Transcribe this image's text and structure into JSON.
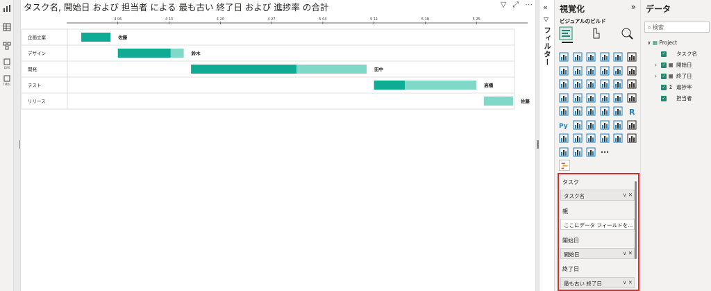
{
  "visual": {
    "title": "タスク名, 開始日 および 担当者 による 最も古い 終了日 および 進捗率 の合計",
    "icons": [
      "filter-icon",
      "focus-mode-icon",
      "more-options-icon"
    ]
  },
  "chart_data": {
    "type": "gantt",
    "x_ticks": [
      "4 06",
      "4 13",
      "4 20",
      "4 27",
      "5 04",
      "5 11",
      "5 18",
      "5 25"
    ],
    "x_range": [
      "2023-03-30",
      "2023-06-01"
    ],
    "rows": [
      {
        "task": "企画立案",
        "start": "2023-04-01",
        "end": "2023-04-05",
        "progress": 1.0,
        "owner": "佐藤"
      },
      {
        "task": "デザイン",
        "start": "2023-04-06",
        "end": "2023-04-15",
        "progress": 0.8,
        "owner": "鈴木"
      },
      {
        "task": "開発",
        "start": "2023-04-16",
        "end": "2023-05-10",
        "progress": 0.6,
        "owner": "田中"
      },
      {
        "task": "テスト",
        "start": "2023-05-11",
        "end": "2023-05-25",
        "progress": 0.3,
        "owner": "高橋"
      },
      {
        "task": "リリース",
        "start": "2023-05-26",
        "end": "2023-05-30",
        "progress": 0.0,
        "owner": "佐藤"
      }
    ],
    "colors": {
      "done": "#0fab95",
      "remaining": "#7fd8c8"
    }
  },
  "filter_pane": {
    "label": "フィルター",
    "collapse_icon": "double-chevron-left-icon"
  },
  "viz_pane": {
    "title": "視覚化",
    "expand_icon": "double-chevron-right-icon",
    "build_label": "ビジュアルのビルド",
    "wells": [
      {
        "label": "タスク",
        "value": "タスク名",
        "placeholder": ""
      },
      {
        "label": "親",
        "value": "",
        "placeholder": "ここにデータ フィールドを..."
      },
      {
        "label": "開始日",
        "value": "開始日",
        "placeholder": ""
      },
      {
        "label": "終了日",
        "value": "最も古い 終了日",
        "placeholder": ""
      }
    ]
  },
  "data_pane": {
    "title": "データ",
    "search_placeholder": "検索",
    "table": "Project",
    "fields": [
      {
        "name": "タスク名",
        "type": "text",
        "checked": true,
        "expandable": false
      },
      {
        "name": "開始日",
        "type": "date",
        "checked": true,
        "expandable": true
      },
      {
        "name": "終了日",
        "type": "date",
        "checked": true,
        "expandable": true
      },
      {
        "name": "進捗率",
        "type": "sum",
        "checked": true,
        "expandable": false
      },
      {
        "name": "担当者",
        "type": "text",
        "checked": true,
        "expandable": false
      }
    ]
  },
  "left_rail": {
    "items": [
      "report-view-icon",
      "table-view-icon",
      "model-view-icon",
      "dax-query-icon",
      "tmdl-view-icon"
    ],
    "labels": [
      "DAX",
      "TMDL"
    ]
  }
}
